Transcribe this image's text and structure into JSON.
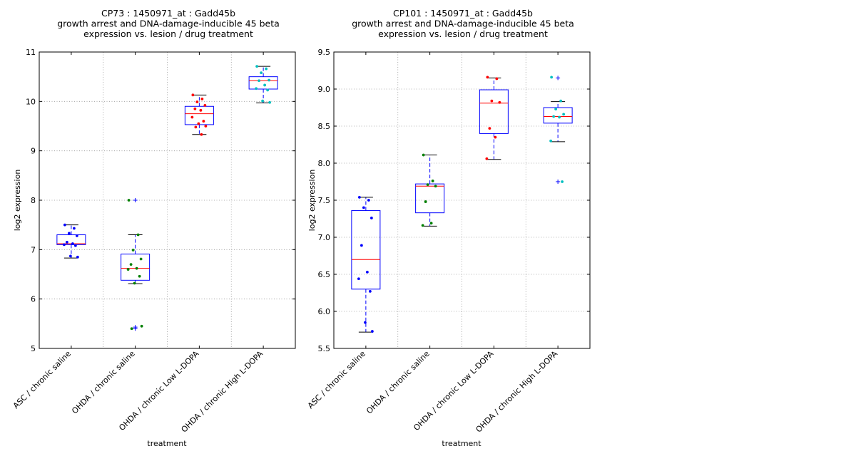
{
  "chart_data": [
    {
      "type": "boxplot",
      "title_lines": [
        "CP73 : 1450971_at : Gadd45b",
        "growth arrest and DNA-damage-inducible 45 beta",
        "expression vs. lesion / drug treatment"
      ],
      "xlabel": "treatment",
      "ylabel": "log2 expression",
      "ylim": [
        5,
        11
      ],
      "yticks": [
        "5",
        "6",
        "7",
        "8",
        "9",
        "10",
        "11"
      ],
      "grid": true,
      "categories": [
        "ASC / chronic saline",
        "OHDA / chronic saline",
        "OHDA / chronic Low L-DOPA",
        "OHDA / chronic High L-DOPA"
      ],
      "boxes": [
        {
          "q1": 7.1,
          "median": 7.12,
          "q3": 7.3,
          "whisker_low": 6.83,
          "whisker_high": 7.5,
          "fliers": []
        },
        {
          "q1": 6.38,
          "median": 6.62,
          "q3": 6.91,
          "whisker_low": 6.31,
          "whisker_high": 7.3,
          "fliers": [
            8.0,
            5.43,
            5.4
          ]
        },
        {
          "q1": 9.53,
          "median": 9.75,
          "q3": 9.9,
          "whisker_low": 9.33,
          "whisker_high": 10.13,
          "fliers": []
        },
        {
          "q1": 10.25,
          "median": 10.42,
          "q3": 10.5,
          "whisker_low": 9.97,
          "whisker_high": 10.71,
          "fliers": []
        }
      ],
      "points": [
        [
          7.5,
          7.43,
          7.33,
          7.28,
          7.15,
          7.12,
          7.1,
          7.08,
          6.87,
          6.85
        ],
        [
          8.0,
          7.3,
          6.99,
          6.81,
          6.7,
          6.62,
          6.6,
          6.46,
          6.32,
          5.45,
          5.4
        ],
        [
          10.13,
          10.05,
          9.99,
          9.92,
          9.85,
          9.82,
          9.68,
          9.6,
          9.55,
          9.5,
          9.48,
          9.33
        ],
        [
          10.71,
          10.66,
          10.58,
          10.43,
          10.42,
          10.33,
          10.26,
          10.23,
          10.01,
          9.98
        ]
      ],
      "point_colors": [
        "#0000ff",
        "#008000",
        "#ff0000",
        "#00bfbf"
      ]
    },
    {
      "type": "boxplot",
      "title_lines": [
        "CP101 : 1450971_at : Gadd45b",
        "growth arrest and DNA-damage-inducible 45 beta",
        "expression vs. lesion / drug treatment"
      ],
      "xlabel": "treatment",
      "ylabel": "log2 expression",
      "ylim": [
        5.5,
        9.5
      ],
      "yticks": [
        "5.5",
        "6.0",
        "6.5",
        "7.0",
        "7.5",
        "8.0",
        "8.5",
        "9.0",
        "9.5"
      ],
      "grid": true,
      "categories": [
        "ASC / chronic saline",
        "OHDA / chronic saline",
        "OHDA / chronic Low L-DOPA",
        "OHDA / chronic High L-DOPA"
      ],
      "boxes": [
        {
          "q1": 6.3,
          "median": 6.7,
          "q3": 7.36,
          "whisker_low": 5.72,
          "whisker_high": 7.54,
          "fliers": []
        },
        {
          "q1": 7.33,
          "median": 7.69,
          "q3": 7.72,
          "whisker_low": 7.15,
          "whisker_high": 8.11,
          "fliers": []
        },
        {
          "q1": 8.4,
          "median": 8.81,
          "q3": 8.99,
          "whisker_low": 8.05,
          "whisker_high": 9.15,
          "fliers": []
        },
        {
          "q1": 8.54,
          "median": 8.63,
          "q3": 8.75,
          "whisker_low": 8.29,
          "whisker_high": 8.83,
          "fliers": [
            9.15,
            7.75
          ]
        }
      ],
      "points": [
        [
          7.54,
          7.5,
          7.4,
          7.26,
          6.89,
          6.53,
          6.44,
          6.27,
          5.85,
          5.73
        ],
        [
          8.11,
          7.76,
          7.71,
          7.69,
          7.48,
          7.19,
          7.16
        ],
        [
          9.16,
          9.14,
          8.84,
          8.82,
          8.47,
          8.35,
          8.06
        ],
        [
          9.16,
          8.84,
          8.73,
          8.66,
          8.63,
          8.62,
          8.3,
          7.75
        ]
      ],
      "point_colors": [
        "#0000ff",
        "#008000",
        "#ff0000",
        "#00bfbf"
      ]
    }
  ]
}
